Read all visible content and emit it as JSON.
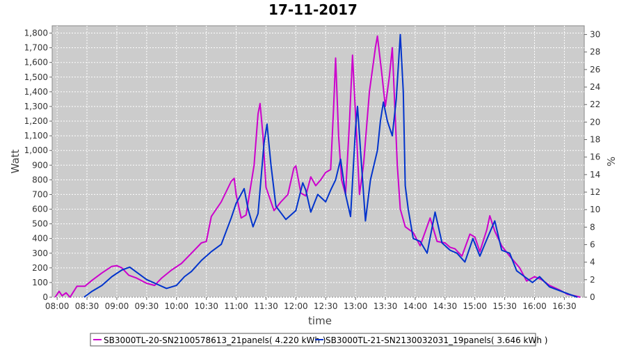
{
  "chart_data": {
    "type": "line",
    "title": "17-11-2017",
    "xlabel": "time",
    "ylabel": "Watt",
    "y2label": "%",
    "ylim": [
      0,
      1850
    ],
    "y2lim": [
      0,
      31
    ],
    "xlim": [
      "07:55",
      "16:50"
    ],
    "yticks": [
      "0",
      "100",
      "200",
      "300",
      "400",
      "500",
      "600",
      "700",
      "800",
      "900",
      "1,000",
      "1,100",
      "1,200",
      "1,300",
      "1,400",
      "1,500",
      "1,600",
      "1,700",
      "1,800"
    ],
    "y2ticks": [
      "0",
      "2",
      "4",
      "6",
      "8",
      "10",
      "12",
      "14",
      "16",
      "18",
      "20",
      "22",
      "24",
      "26",
      "28",
      "30"
    ],
    "xticks": [
      "08:00",
      "08:30",
      "09:00",
      "09:30",
      "10:00",
      "10:30",
      "11:00",
      "11:30",
      "12:00",
      "12:30",
      "13:00",
      "13:30",
      "14:00",
      "14:30",
      "15:00",
      "15:30",
      "16:00",
      "16:30"
    ],
    "grid": true,
    "legend_position": "bottom",
    "plot_background": "#cccccc",
    "series": [
      {
        "name": "SB3000TL-20-SN2100578613_21panels( 4.220 kWh )",
        "color": "#cc00cc",
        "points": [
          [
            "07:58",
            0
          ],
          [
            "08:02",
            40
          ],
          [
            "08:05",
            10
          ],
          [
            "08:09",
            30
          ],
          [
            "08:13",
            0
          ],
          [
            "08:20",
            75
          ],
          [
            "08:28",
            75
          ],
          [
            "08:35",
            115
          ],
          [
            "08:45",
            165
          ],
          [
            "08:55",
            210
          ],
          [
            "09:00",
            215
          ],
          [
            "09:05",
            200
          ],
          [
            "09:12",
            150
          ],
          [
            "09:20",
            130
          ],
          [
            "09:30",
            95
          ],
          [
            "09:38",
            80
          ],
          [
            "09:45",
            130
          ],
          [
            "09:55",
            185
          ],
          [
            "10:05",
            230
          ],
          [
            "10:15",
            300
          ],
          [
            "10:25",
            370
          ],
          [
            "10:30",
            380
          ],
          [
            "10:35",
            550
          ],
          [
            "10:45",
            650
          ],
          [
            "10:55",
            790
          ],
          [
            "10:58",
            810
          ],
          [
            "11:00",
            700
          ],
          [
            "11:05",
            540
          ],
          [
            "11:10",
            560
          ],
          [
            "11:18",
            900
          ],
          [
            "11:22",
            1250
          ],
          [
            "11:24",
            1320
          ],
          [
            "11:27",
            1100
          ],
          [
            "11:30",
            750
          ],
          [
            "11:38",
            590
          ],
          [
            "11:45",
            650
          ],
          [
            "11:52",
            700
          ],
          [
            "11:58",
            880
          ],
          [
            "12:00",
            895
          ],
          [
            "12:05",
            710
          ],
          [
            "12:10",
            690
          ],
          [
            "12:15",
            820
          ],
          [
            "12:20",
            760
          ],
          [
            "12:25",
            800
          ],
          [
            "12:30",
            850
          ],
          [
            "12:35",
            870
          ],
          [
            "12:38",
            1300
          ],
          [
            "12:40",
            1630
          ],
          [
            "12:43",
            1100
          ],
          [
            "12:46",
            800
          ],
          [
            "12:50",
            700
          ],
          [
            "12:54",
            1200
          ],
          [
            "12:57",
            1650
          ],
          [
            "13:00",
            1250
          ],
          [
            "13:04",
            700
          ],
          [
            "13:08",
            900
          ],
          [
            "13:14",
            1400
          ],
          [
            "13:20",
            1700
          ],
          [
            "13:22",
            1780
          ],
          [
            "13:26",
            1550
          ],
          [
            "13:30",
            1300
          ],
          [
            "13:34",
            1500
          ],
          [
            "13:37",
            1700
          ],
          [
            "13:39",
            1380
          ],
          [
            "13:42",
            900
          ],
          [
            "13:45",
            600
          ],
          [
            "13:50",
            480
          ],
          [
            "13:58",
            440
          ],
          [
            "14:05",
            350
          ],
          [
            "14:15",
            540
          ],
          [
            "14:22",
            380
          ],
          [
            "14:30",
            370
          ],
          [
            "14:35",
            340
          ],
          [
            "14:40",
            330
          ],
          [
            "14:47",
            280
          ],
          [
            "14:55",
            430
          ],
          [
            "15:00",
            410
          ],
          [
            "15:05",
            310
          ],
          [
            "15:12",
            460
          ],
          [
            "15:15",
            555
          ],
          [
            "15:20",
            450
          ],
          [
            "15:27",
            350
          ],
          [
            "15:35",
            280
          ],
          [
            "15:45",
            200
          ],
          [
            "15:52",
            110
          ],
          [
            "16:00",
            140
          ],
          [
            "16:07",
            120
          ],
          [
            "16:15",
            80
          ],
          [
            "16:25",
            50
          ],
          [
            "16:33",
            20
          ],
          [
            "16:40",
            10
          ],
          [
            "16:46",
            0
          ]
        ]
      },
      {
        "name": "SB3000TL-21-SN2130032031_19panels( 3.646 kWh )",
        "color": "#0033cc",
        "points": [
          [
            "08:27",
            0
          ],
          [
            "08:35",
            40
          ],
          [
            "08:45",
            80
          ],
          [
            "08:55",
            140
          ],
          [
            "09:05",
            185
          ],
          [
            "09:13",
            205
          ],
          [
            "09:20",
            170
          ],
          [
            "09:30",
            120
          ],
          [
            "09:40",
            90
          ],
          [
            "09:50",
            60
          ],
          [
            "10:00",
            80
          ],
          [
            "10:08",
            140
          ],
          [
            "10:15",
            175
          ],
          [
            "10:25",
            250
          ],
          [
            "10:35",
            310
          ],
          [
            "10:45",
            360
          ],
          [
            "10:55",
            540
          ],
          [
            "11:00",
            640
          ],
          [
            "11:08",
            740
          ],
          [
            "11:12",
            600
          ],
          [
            "11:17",
            480
          ],
          [
            "11:22",
            570
          ],
          [
            "11:28",
            1050
          ],
          [
            "11:31",
            1180
          ],
          [
            "11:35",
            900
          ],
          [
            "11:40",
            620
          ],
          [
            "11:50",
            530
          ],
          [
            "12:00",
            590
          ],
          [
            "12:07",
            780
          ],
          [
            "12:10",
            730
          ],
          [
            "12:15",
            580
          ],
          [
            "12:22",
            700
          ],
          [
            "12:30",
            650
          ],
          [
            "12:35",
            730
          ],
          [
            "12:40",
            800
          ],
          [
            "12:45",
            940
          ],
          [
            "12:50",
            700
          ],
          [
            "12:55",
            550
          ],
          [
            "13:00",
            1150
          ],
          [
            "13:02",
            1300
          ],
          [
            "13:05",
            1000
          ],
          [
            "13:10",
            520
          ],
          [
            "13:15",
            800
          ],
          [
            "13:22",
            1000
          ],
          [
            "13:25",
            1200
          ],
          [
            "13:28",
            1330
          ],
          [
            "13:32",
            1200
          ],
          [
            "13:37",
            1100
          ],
          [
            "13:41",
            1350
          ],
          [
            "13:45",
            1790
          ],
          [
            "13:48",
            1400
          ],
          [
            "13:50",
            760
          ],
          [
            "13:53",
            600
          ],
          [
            "13:58",
            400
          ],
          [
            "14:05",
            380
          ],
          [
            "14:12",
            300
          ],
          [
            "14:20",
            580
          ],
          [
            "14:27",
            370
          ],
          [
            "14:35",
            320
          ],
          [
            "14:42",
            300
          ],
          [
            "14:50",
            240
          ],
          [
            "14:58",
            400
          ],
          [
            "15:05",
            280
          ],
          [
            "15:13",
            410
          ],
          [
            "15:20",
            520
          ],
          [
            "15:27",
            320
          ],
          [
            "15:35",
            300
          ],
          [
            "15:42",
            180
          ],
          [
            "15:50",
            140
          ],
          [
            "15:58",
            100
          ],
          [
            "16:05",
            140
          ],
          [
            "16:15",
            70
          ],
          [
            "16:25",
            45
          ],
          [
            "16:35",
            20
          ],
          [
            "16:43",
            0
          ]
        ]
      }
    ]
  }
}
